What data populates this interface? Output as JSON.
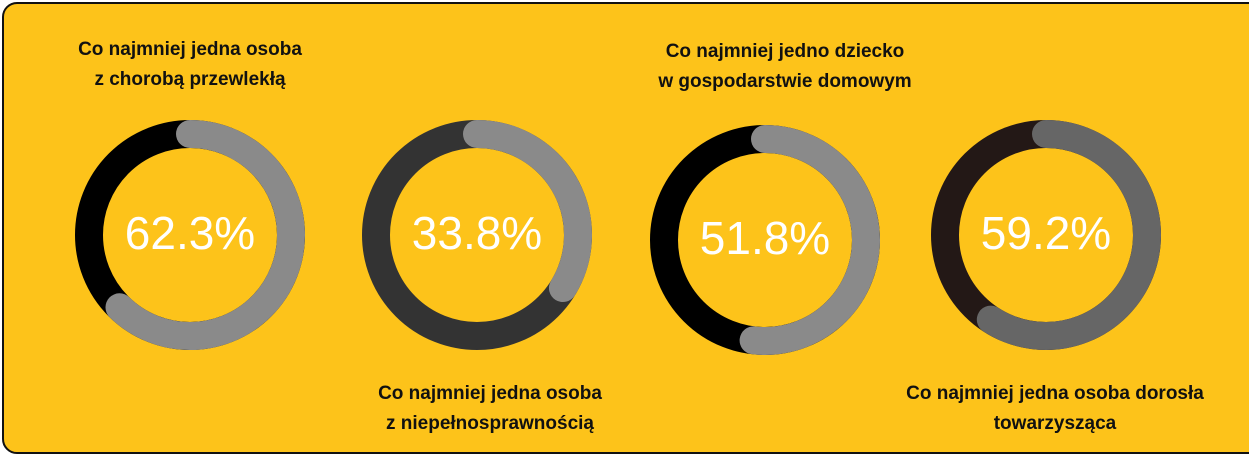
{
  "chart_data": [
    {
      "type": "donut",
      "title_lines": [
        "Co najmniej jedna osoba",
        "z chorobą przewlekłą"
      ],
      "value": 62.3,
      "value_label": "62.3%",
      "color": "#8a8a8a",
      "rest_color": "#000000"
    },
    {
      "type": "donut",
      "title_lines": [
        "Co najmniej jedna osoba",
        "z niepełnosprawnością"
      ],
      "value": 33.8,
      "value_label": "33.8%",
      "color": "#8a8a8a",
      "rest_color": "#333333"
    },
    {
      "type": "donut",
      "title_lines": [
        "Co najmniej jedno dziecko",
        "w gospodarstwie domowym"
      ],
      "value": 51.8,
      "value_label": "51.8%",
      "color": "#8a8a8a",
      "rest_color": "#000000"
    },
    {
      "type": "donut",
      "title_lines": [
        "Co najmniej jedna osoba dorosła",
        "towarzysząca"
      ],
      "value": 59.2,
      "value_label": "59.2%",
      "color": "#666666",
      "rest_color": "#231816"
    }
  ]
}
